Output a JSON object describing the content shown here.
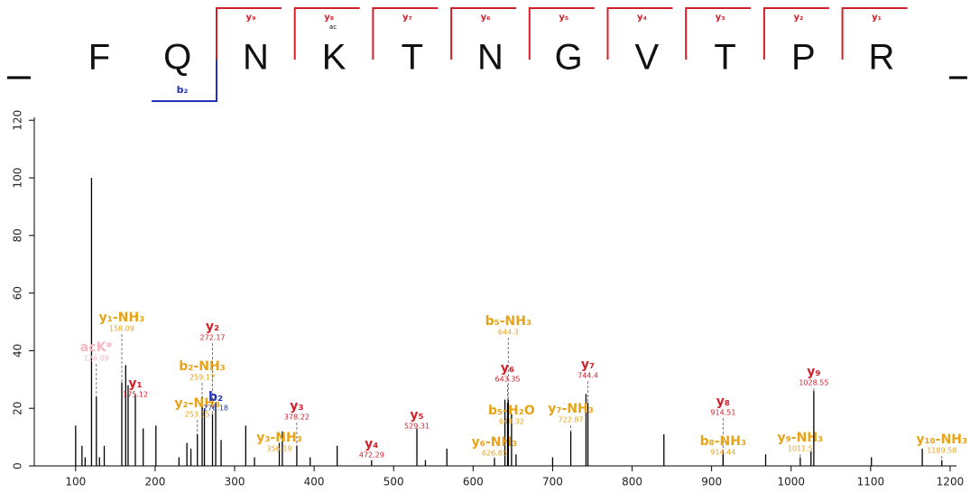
{
  "sequence": {
    "residues": [
      "F",
      "Q",
      "N",
      "K",
      "T",
      "N",
      "G",
      "V",
      "T",
      "P",
      "R"
    ],
    "y_ions": [
      "y₉",
      "y₈",
      "y₇",
      "y₆",
      "y₅",
      "y₄",
      "y₃",
      "y₂",
      "y₁"
    ],
    "b_ions": [
      "b₂"
    ],
    "modification": "ac"
  },
  "chart_data": {
    "type": "spectrum",
    "xlim": [
      48,
      1208
    ],
    "xticks": [
      100,
      200,
      300,
      400,
      500,
      600,
      700,
      800,
      900,
      1000,
      1100,
      1200
    ],
    "ylim": [
      0,
      121
    ],
    "yticks": [
      0,
      20,
      40,
      60,
      80,
      100,
      120
    ],
    "peak_color": "#000000",
    "peaks": {
      "mz": [
        100,
        108,
        112,
        120,
        130,
        136,
        163,
        166,
        185,
        201,
        230,
        240,
        245,
        262,
        283,
        314,
        325,
        360,
        395,
        429,
        540,
        567,
        640,
        654,
        700,
        742,
        840,
        968,
        1025,
        1101,
        1165
      ],
      "intensity": [
        14,
        7,
        3,
        100,
        3,
        7,
        35,
        28,
        13,
        14,
        3,
        8,
        6,
        20,
        9,
        14,
        3,
        12,
        3,
        7,
        2,
        6,
        23,
        4,
        3,
        25,
        11,
        4,
        5,
        3,
        6
      ]
    },
    "annotations": [
      {
        "label": "acK*",
        "mz": 126.09,
        "intensity": 24,
        "color": "#f4b6c2"
      },
      {
        "label": "y₁-NH₃",
        "mz": 158.09,
        "intensity": 29,
        "color": "#e8a317"
      },
      {
        "label": "y₁",
        "mz": 175.12,
        "intensity": 25,
        "color": "#d0202a"
      },
      {
        "label": "b₂-NH₃",
        "mz": 259.17,
        "intensity": 24,
        "color": "#e8a317"
      },
      {
        "label": "y₂-NH₃",
        "mz": 253.15,
        "intensity": 11,
        "color": "#e8a317"
      },
      {
        "label": "y₂",
        "mz": 272.17,
        "intensity": 18,
        "color": "#d0202a"
      },
      {
        "label": "b₂",
        "mz": 276.18,
        "intensity": 22,
        "color": "#2233bb"
      },
      {
        "label": "y₃",
        "mz": 378.22,
        "intensity": 7,
        "color": "#d0202a"
      },
      {
        "label": "y₃-NH₃",
        "mz": 356.19,
        "intensity": 8,
        "color": "#e8a317"
      },
      {
        "label": "y₄",
        "mz": 472.29,
        "intensity": 2,
        "color": "#d0202a"
      },
      {
        "label": "y₅",
        "mz": 529.31,
        "intensity": 13,
        "color": "#d0202a"
      },
      {
        "label": "y₆-NH₃",
        "mz": 626.85,
        "intensity": 3,
        "color": "#e8a317"
      },
      {
        "label": "b₅-H₂O",
        "mz": 648.32,
        "intensity": 18,
        "color": "#e8a317"
      },
      {
        "label": "y₆",
        "mz": 643.35,
        "intensity": 22,
        "color": "#d0202a"
      },
      {
        "label": "b₅-NH₃",
        "mz": 644.3,
        "intensity": 23,
        "color": "#e8a317"
      },
      {
        "label": "y₇-NH₃",
        "mz": 722.87,
        "intensity": 12,
        "color": "#e8a317"
      },
      {
        "label": "y₇",
        "mz": 744.4,
        "intensity": 22,
        "color": "#d0202a"
      },
      {
        "label": "y₈",
        "mz": 914.51,
        "intensity": 5,
        "color": "#d0202a"
      },
      {
        "label": "b₈-NH₃",
        "mz": 914.44,
        "intensity": 4,
        "color": "#e8a317"
      },
      {
        "label": "y₉-NH₃",
        "mz": 1011.5,
        "intensity": 3,
        "color": "#e8a317"
      },
      {
        "label": "y₉",
        "mz": 1028.55,
        "intensity": 26,
        "color": "#d0202a"
      },
      {
        "label": "y₁₀-NH₃",
        "mz": 1189.58,
        "intensity": 2,
        "color": "#e8a317"
      }
    ]
  }
}
